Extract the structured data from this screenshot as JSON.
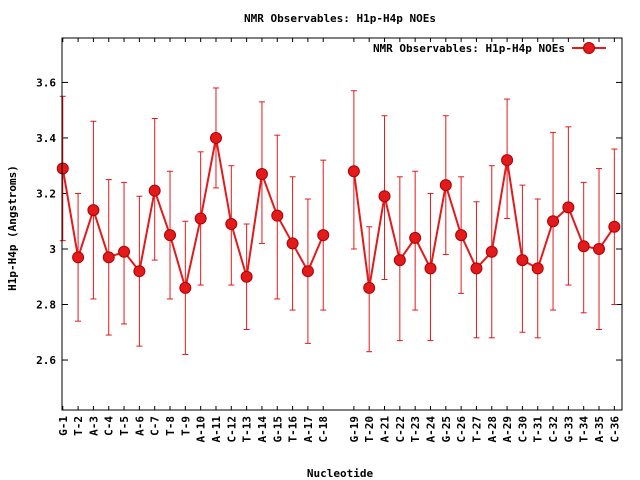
{
  "chart_data": {
    "type": "line",
    "title": "NMR Observables: H1p-H4p NOEs",
    "xlabel": "Nucleotide",
    "ylabel": "H1p-H4p (Angstroms)",
    "ylim": [
      2.42,
      3.76
    ],
    "yticks": [
      "2.6",
      "2.8",
      "3",
      "3.2",
      "3.4",
      "3.6"
    ],
    "ytick_values": [
      2.6,
      2.8,
      3.0,
      3.2,
      3.4,
      3.6
    ],
    "grid": false,
    "legend_position": "top-right",
    "color": "#e31a1c",
    "categories": [
      "G-1",
      "T-2",
      "A-3",
      "C-4",
      "T-5",
      "A-6",
      "C-7",
      "T-8",
      "T-9",
      "A-10",
      "A-11",
      "C-12",
      "T-13",
      "A-14",
      "G-15",
      "T-16",
      "A-17",
      "C-18",
      "G-19",
      "T-20",
      "A-21",
      "C-22",
      "T-23",
      "A-24",
      "G-25",
      "C-26",
      "T-27",
      "A-28",
      "A-29",
      "C-30",
      "T-31",
      "C-32",
      "G-33",
      "T-34",
      "A-35",
      "C-36"
    ],
    "x": [
      1,
      2,
      3,
      4,
      5,
      6,
      7,
      8,
      9,
      10,
      11,
      12,
      13,
      14,
      15,
      16,
      17,
      18,
      20,
      21,
      22,
      23,
      24,
      25,
      26,
      27,
      28,
      29,
      30,
      31,
      32,
      33,
      34,
      35,
      36,
      37
    ],
    "series": [
      {
        "name": "NMR Observables: H1p-H4p NOEs",
        "values": [
          3.29,
          2.97,
          3.14,
          2.97,
          2.99,
          2.92,
          3.21,
          3.05,
          2.86,
          3.11,
          3.4,
          3.09,
          2.9,
          3.27,
          3.12,
          3.02,
          2.92,
          3.05,
          3.28,
          2.86,
          3.19,
          2.96,
          3.04,
          2.93,
          3.23,
          3.05,
          2.93,
          2.99,
          3.32,
          2.96,
          2.93,
          3.1,
          3.15,
          3.01,
          3.0,
          3.08
        ],
        "err_low": [
          3.03,
          2.74,
          2.82,
          2.69,
          2.73,
          2.65,
          2.96,
          2.82,
          2.62,
          2.87,
          3.22,
          2.87,
          2.71,
          3.02,
          2.82,
          2.78,
          2.66,
          2.78,
          3.0,
          2.63,
          2.89,
          2.67,
          2.78,
          2.67,
          2.98,
          2.84,
          2.68,
          2.68,
          3.11,
          2.7,
          2.68,
          2.78,
          2.87,
          2.77,
          2.71,
          2.8
        ],
        "err_high": [
          3.55,
          3.2,
          3.46,
          3.25,
          3.24,
          3.19,
          3.47,
          3.28,
          3.1,
          3.35,
          3.58,
          3.3,
          3.09,
          3.53,
          3.41,
          3.26,
          3.18,
          3.32,
          3.57,
          3.08,
          3.48,
          3.26,
          3.28,
          3.2,
          3.48,
          3.26,
          3.17,
          3.3,
          3.54,
          3.23,
          3.18,
          3.42,
          3.44,
          3.24,
          3.29,
          3.36
        ]
      }
    ]
  }
}
